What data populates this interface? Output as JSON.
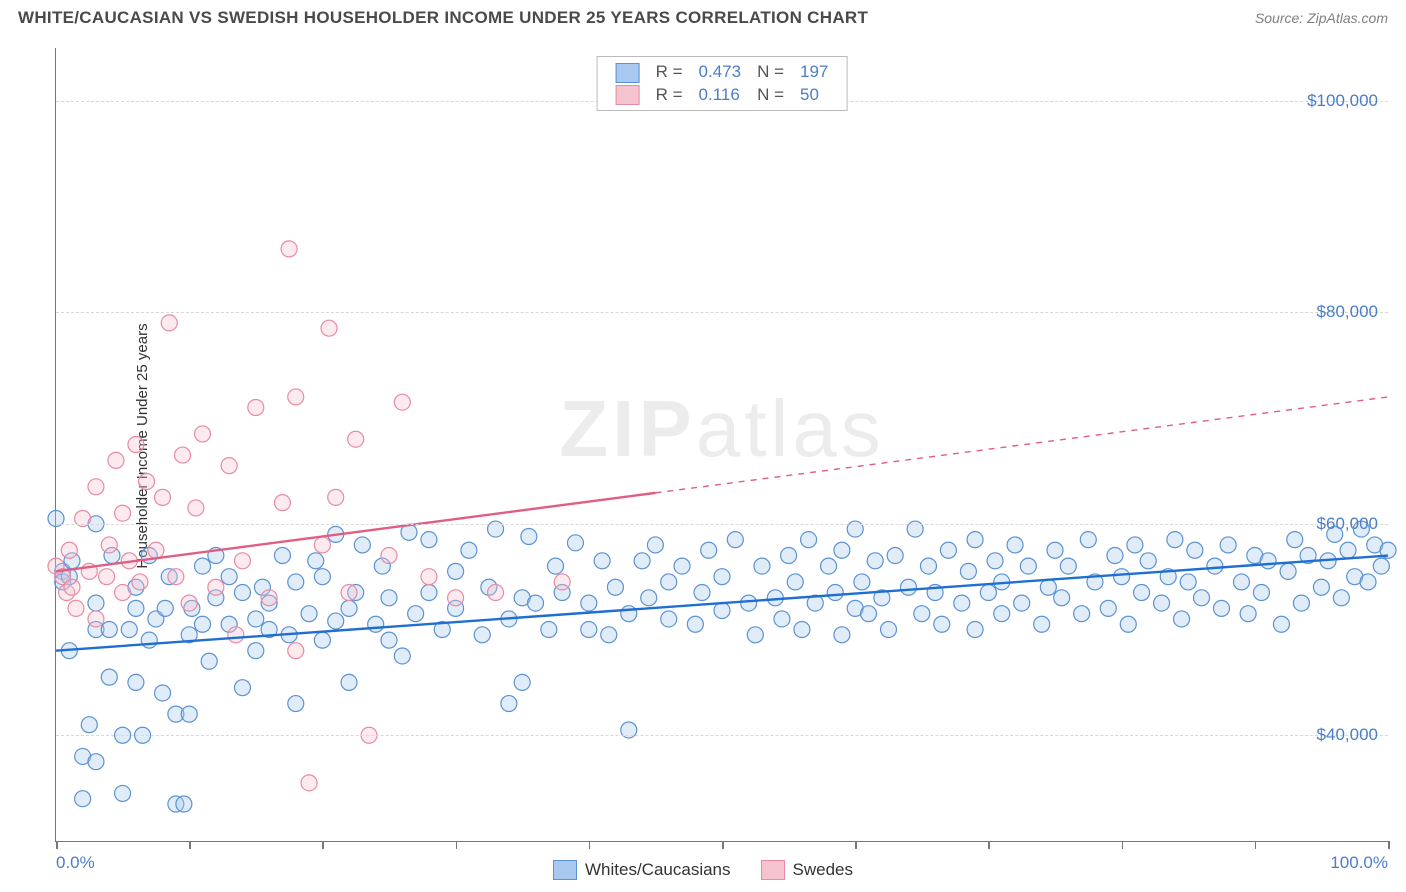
{
  "header": {
    "title": "WHITE/CAUCASIAN VS SWEDISH HOUSEHOLDER INCOME UNDER 25 YEARS CORRELATION CHART",
    "source": "Source: ZipAtlas.com"
  },
  "watermark": {
    "a": "ZIP",
    "b": "atlas"
  },
  "chart": {
    "type": "scatter",
    "ylabel": "Householder Income Under 25 years",
    "background_color": "#ffffff",
    "grid_color": "#d8d8d8",
    "axis_color": "#777777",
    "tick_label_color": "#4a7ec9",
    "xlim": [
      0,
      100
    ],
    "ylim": [
      30000,
      105000
    ],
    "xticks": [
      0,
      10,
      20,
      30,
      40,
      50,
      60,
      70,
      80,
      90,
      100
    ],
    "xtick_labels_shown": {
      "0": "0.0%",
      "100": "100.0%"
    },
    "yticks": [
      40000,
      60000,
      80000,
      100000
    ],
    "ytick_labels": [
      "$40,000",
      "$60,000",
      "$80,000",
      "$100,000"
    ],
    "marker_radius": 8,
    "marker_stroke_width": 1.2,
    "marker_fill_opacity": 0.35,
    "trend_line_width": 2.4,
    "series": [
      {
        "name": "Whites/Caucasians",
        "color_fill": "#a8c8ef",
        "color_stroke": "#5b92d4",
        "trend_color": "#1f6fd1",
        "trend_style": "solid",
        "trend_y_at_x0": 48000,
        "trend_y_at_x100": 57000,
        "r": "0.473",
        "n": "197",
        "points": [
          [
            0,
            60500
          ],
          [
            0.5,
            55500
          ],
          [
            0.5,
            54500
          ],
          [
            1,
            55000
          ],
          [
            1,
            48000
          ],
          [
            1.2,
            56500
          ],
          [
            2,
            38000
          ],
          [
            2,
            34000
          ],
          [
            2.5,
            41000
          ],
          [
            3,
            52500
          ],
          [
            3,
            50000
          ],
          [
            3,
            60000
          ],
          [
            3,
            37500
          ],
          [
            4,
            50000
          ],
          [
            4,
            45500
          ],
          [
            4.2,
            57000
          ],
          [
            5,
            40000
          ],
          [
            5,
            34500
          ],
          [
            5.5,
            50000
          ],
          [
            6,
            52000
          ],
          [
            6,
            45000
          ],
          [
            6,
            54000
          ],
          [
            6.5,
            40000
          ],
          [
            7,
            49000
          ],
          [
            7,
            57000
          ],
          [
            7.5,
            51000
          ],
          [
            8,
            44000
          ],
          [
            8.2,
            52000
          ],
          [
            8.5,
            55000
          ],
          [
            9,
            42000
          ],
          [
            9,
            33500
          ],
          [
            9.6,
            33500
          ],
          [
            10,
            49500
          ],
          [
            10,
            42000
          ],
          [
            10.2,
            52000
          ],
          [
            11,
            56000
          ],
          [
            11,
            50500
          ],
          [
            11.5,
            47000
          ],
          [
            12,
            53000
          ],
          [
            12,
            57000
          ],
          [
            13,
            55000
          ],
          [
            13,
            50500
          ],
          [
            14,
            44500
          ],
          [
            14,
            53500
          ],
          [
            15,
            51000
          ],
          [
            15,
            48000
          ],
          [
            15.5,
            54000
          ],
          [
            16,
            50000
          ],
          [
            16,
            52500
          ],
          [
            17,
            57000
          ],
          [
            17.5,
            49500
          ],
          [
            18,
            43000
          ],
          [
            18,
            54500
          ],
          [
            19,
            51500
          ],
          [
            19.5,
            56500
          ],
          [
            20,
            49000
          ],
          [
            20,
            55000
          ],
          [
            21,
            59000
          ],
          [
            21,
            50800
          ],
          [
            22,
            52000
          ],
          [
            22,
            45000
          ],
          [
            22.5,
            53500
          ],
          [
            23,
            58000
          ],
          [
            24,
            50500
          ],
          [
            24.5,
            56000
          ],
          [
            25,
            49000
          ],
          [
            25,
            53000
          ],
          [
            26,
            47500
          ],
          [
            26.5,
            59200
          ],
          [
            27,
            51500
          ],
          [
            28,
            53500
          ],
          [
            28,
            58500
          ],
          [
            29,
            50000
          ],
          [
            30,
            55500
          ],
          [
            30,
            52000
          ],
          [
            31,
            57500
          ],
          [
            32,
            49500
          ],
          [
            32.5,
            54000
          ],
          [
            33,
            59500
          ],
          [
            34,
            51000
          ],
          [
            34,
            43000
          ],
          [
            35,
            45000
          ],
          [
            35,
            53000
          ],
          [
            35.5,
            58800
          ],
          [
            36,
            52500
          ],
          [
            37,
            50000
          ],
          [
            37.5,
            56000
          ],
          [
            38,
            53500
          ],
          [
            39,
            58200
          ],
          [
            40,
            50000
          ],
          [
            40,
            52500
          ],
          [
            41,
            56500
          ],
          [
            41.5,
            49500
          ],
          [
            42,
            54000
          ],
          [
            43,
            40500
          ],
          [
            43,
            51500
          ],
          [
            44,
            56500
          ],
          [
            44.5,
            53000
          ],
          [
            45,
            58000
          ],
          [
            46,
            51000
          ],
          [
            46,
            54500
          ],
          [
            47,
            56000
          ],
          [
            48,
            50500
          ],
          [
            48.5,
            53500
          ],
          [
            49,
            57500
          ],
          [
            50,
            51800
          ],
          [
            50,
            55000
          ],
          [
            51,
            58500
          ],
          [
            52,
            52500
          ],
          [
            52.5,
            49500
          ],
          [
            53,
            56000
          ],
          [
            54,
            53000
          ],
          [
            54.5,
            51000
          ],
          [
            55,
            57000
          ],
          [
            55.5,
            54500
          ],
          [
            56,
            50000
          ],
          [
            56.5,
            58500
          ],
          [
            57,
            52500
          ],
          [
            58,
            56000
          ],
          [
            58.5,
            53500
          ],
          [
            59,
            49500
          ],
          [
            59,
            57500
          ],
          [
            60,
            52000
          ],
          [
            60,
            59500
          ],
          [
            60.5,
            54500
          ],
          [
            61,
            51500
          ],
          [
            61.5,
            56500
          ],
          [
            62,
            53000
          ],
          [
            62.5,
            50000
          ],
          [
            63,
            57000
          ],
          [
            64,
            54000
          ],
          [
            64.5,
            59500
          ],
          [
            65,
            51500
          ],
          [
            65.5,
            56000
          ],
          [
            66,
            53500
          ],
          [
            66.5,
            50500
          ],
          [
            67,
            57500
          ],
          [
            68,
            52500
          ],
          [
            68.5,
            55500
          ],
          [
            69,
            50000
          ],
          [
            69,
            58500
          ],
          [
            70,
            53500
          ],
          [
            70.5,
            56500
          ],
          [
            71,
            51500
          ],
          [
            71,
            54500
          ],
          [
            72,
            58000
          ],
          [
            72.5,
            52500
          ],
          [
            73,
            56000
          ],
          [
            74,
            50500
          ],
          [
            74.5,
            54000
          ],
          [
            75,
            57500
          ],
          [
            75.5,
            53000
          ],
          [
            76,
            56000
          ],
          [
            77,
            51500
          ],
          [
            77.5,
            58500
          ],
          [
            78,
            54500
          ],
          [
            79,
            52000
          ],
          [
            79.5,
            57000
          ],
          [
            80,
            55000
          ],
          [
            80.5,
            50500
          ],
          [
            81,
            58000
          ],
          [
            81.5,
            53500
          ],
          [
            82,
            56500
          ],
          [
            83,
            52500
          ],
          [
            83.5,
            55000
          ],
          [
            84,
            58500
          ],
          [
            84.5,
            51000
          ],
          [
            85,
            54500
          ],
          [
            85.5,
            57500
          ],
          [
            86,
            53000
          ],
          [
            87,
            56000
          ],
          [
            87.5,
            52000
          ],
          [
            88,
            58000
          ],
          [
            89,
            54500
          ],
          [
            89.5,
            51500
          ],
          [
            90,
            57000
          ],
          [
            90.5,
            53500
          ],
          [
            91,
            56500
          ],
          [
            92,
            50500
          ],
          [
            92.5,
            55500
          ],
          [
            93,
            58500
          ],
          [
            93.5,
            52500
          ],
          [
            94,
            57000
          ],
          [
            95,
            54000
          ],
          [
            95.5,
            56500
          ],
          [
            96,
            59000
          ],
          [
            96.5,
            53000
          ],
          [
            97,
            57500
          ],
          [
            97.5,
            55000
          ],
          [
            98,
            59500
          ],
          [
            98.5,
            54500
          ],
          [
            99,
            58000
          ],
          [
            99.5,
            56000
          ],
          [
            100,
            57500
          ]
        ]
      },
      {
        "name": "Swedes",
        "color_fill": "#f5c4cf",
        "color_stroke": "#e88ba2",
        "trend_color": "#e15d82",
        "trend_style": "half",
        "trend_y_at_x0": 55500,
        "trend_y_at_x100": 72000,
        "r": "0.116",
        "n": "50",
        "points": [
          [
            0,
            56000
          ],
          [
            0.5,
            55000
          ],
          [
            0.8,
            53500
          ],
          [
            1,
            57500
          ],
          [
            1.2,
            54000
          ],
          [
            1.5,
            52000
          ],
          [
            2,
            60500
          ],
          [
            2.5,
            55500
          ],
          [
            3,
            63500
          ],
          [
            3,
            51000
          ],
          [
            3.8,
            55000
          ],
          [
            4,
            58000
          ],
          [
            4.5,
            66000
          ],
          [
            5,
            53500
          ],
          [
            5,
            61000
          ],
          [
            5.5,
            56500
          ],
          [
            6,
            67500
          ],
          [
            6.3,
            54500
          ],
          [
            6.8,
            64000
          ],
          [
            7.5,
            57500
          ],
          [
            8,
            62500
          ],
          [
            8.5,
            79000
          ],
          [
            9,
            55000
          ],
          [
            9.5,
            66500
          ],
          [
            10,
            52500
          ],
          [
            10.5,
            61500
          ],
          [
            11,
            68500
          ],
          [
            12,
            54000
          ],
          [
            13,
            65500
          ],
          [
            13.5,
            49500
          ],
          [
            14,
            56500
          ],
          [
            15,
            71000
          ],
          [
            16,
            53000
          ],
          [
            17,
            62000
          ],
          [
            17.5,
            86000
          ],
          [
            18,
            48000
          ],
          [
            18,
            72000
          ],
          [
            19,
            35500
          ],
          [
            20,
            58000
          ],
          [
            20.5,
            78500
          ],
          [
            21,
            62500
          ],
          [
            22,
            53500
          ],
          [
            22.5,
            68000
          ],
          [
            23.5,
            40000
          ],
          [
            25,
            57000
          ],
          [
            26,
            71500
          ],
          [
            28,
            55000
          ],
          [
            30,
            53000
          ],
          [
            33,
            53500
          ],
          [
            38,
            54500
          ]
        ]
      }
    ]
  },
  "legend_bottom": [
    {
      "label": "Whites/Caucasians",
      "fill": "#a8c8ef",
      "stroke": "#5b92d4"
    },
    {
      "label": "Swedes",
      "fill": "#f5c4cf",
      "stroke": "#e88ba2"
    }
  ]
}
